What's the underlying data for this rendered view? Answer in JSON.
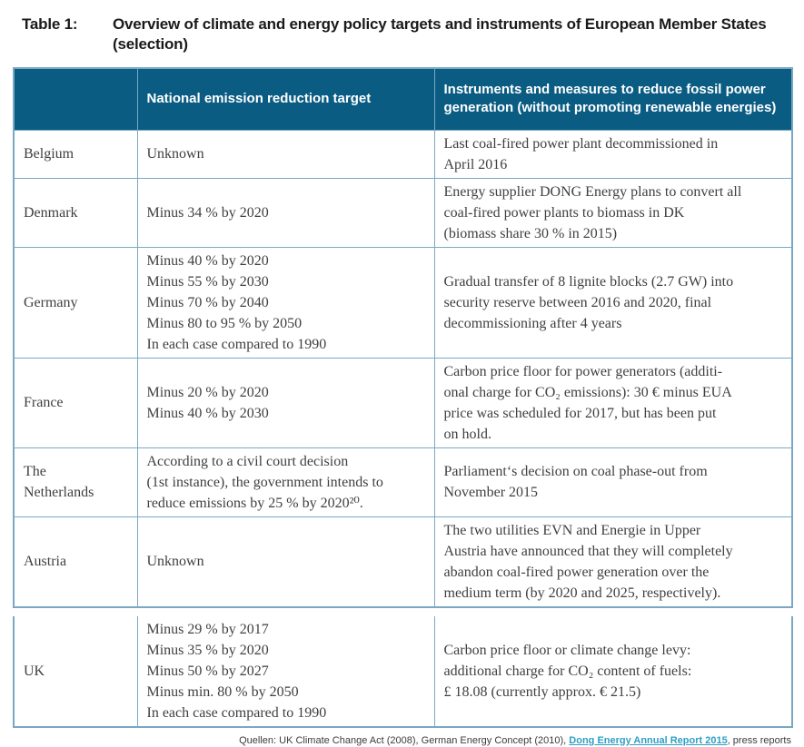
{
  "caption": {
    "label": "Table 1:",
    "line1": "Overview of climate and energy policy targets and instruments of European Member States",
    "line2": "(selection)"
  },
  "colors": {
    "header_bg": "#0a5c83",
    "border": "#7aa8c4",
    "link": "#2f9fc4"
  },
  "table": {
    "headers": {
      "country": "",
      "target": "National emission reduction target",
      "instruments": "Instruments and measures to reduce fossil power generation (without promoting renewable energies)"
    },
    "rows": [
      {
        "country_lines": [
          "Belgium"
        ],
        "target_lines": [
          "Unknown"
        ],
        "instrument_lines": [
          "Last coal-fired power plant decommissioned in",
          "April 2016"
        ]
      },
      {
        "country_lines": [
          "Denmark"
        ],
        "target_lines": [
          "Minus 34 % by 2020"
        ],
        "instrument_lines": [
          "Energy supplier DONG Energy plans to convert all",
          "coal-fired power plants to biomass in DK",
          "(biomass share 30 % in 2015)"
        ]
      },
      {
        "country_lines": [
          "Germany"
        ],
        "target_lines": [
          "Minus 40 % by 2020",
          "Minus 55 % by 2030",
          "Minus 70 % by 2040",
          "Minus 80 to 95 % by 2050",
          "In each case compared to 1990"
        ],
        "instrument_lines": [
          "Gradual transfer of 8 lignite blocks (2.7 GW) into",
          "security reserve between 2016 and 2020, final",
          "decommissioning after 4 years"
        ]
      },
      {
        "country_lines": [
          "France"
        ],
        "target_lines": [
          "Minus 20 % by 2020",
          "Minus 40 % by 2030"
        ],
        "instrument_lines": [
          "Carbon price floor for power generators (additi-",
          "onal charge for CO₂ emissions): 30 € minus EUA",
          "price was scheduled for 2017, but has been put",
          "on hold."
        ]
      },
      {
        "country_lines": [
          "The",
          "Netherlands"
        ],
        "target_lines": [
          "According to a civil court decision",
          "(1st instance), the government intends to",
          "reduce emissions by 25 % by 2020²⁰."
        ],
        "instrument_lines": [
          "Parliament‘s decision on coal phase-out from",
          "November 2015"
        ]
      },
      {
        "country_lines": [
          "Austria"
        ],
        "target_lines": [
          "Unknown"
        ],
        "instrument_lines": [
          "The two utilities EVN and Energie in Upper",
          "Austria have announced that they will completely",
          "abandon coal-fired power generation over the",
          "medium term (by 2020 and 2025, respectively)."
        ]
      }
    ],
    "detached_rows": [
      {
        "country_lines": [
          "UK"
        ],
        "target_lines": [
          "Minus 29 % by 2017",
          "Minus 35 % by 2020",
          "Minus 50 % by 2027",
          "Minus min. 80 % by 2050",
          "In each case compared to 1990"
        ],
        "instrument_lines": [
          "Carbon price floor or climate change levy:",
          "additional charge for CO₂ content of fuels:",
          "£ 18.08 (currently approx. € 21.5)"
        ]
      }
    ]
  },
  "footer": {
    "prefix": "Quellen: UK Climate Change Act (2008), German Energy Concept (2010), ",
    "link_label": "Dong Energy Annual Report 2015",
    "suffix": ", press reports"
  }
}
